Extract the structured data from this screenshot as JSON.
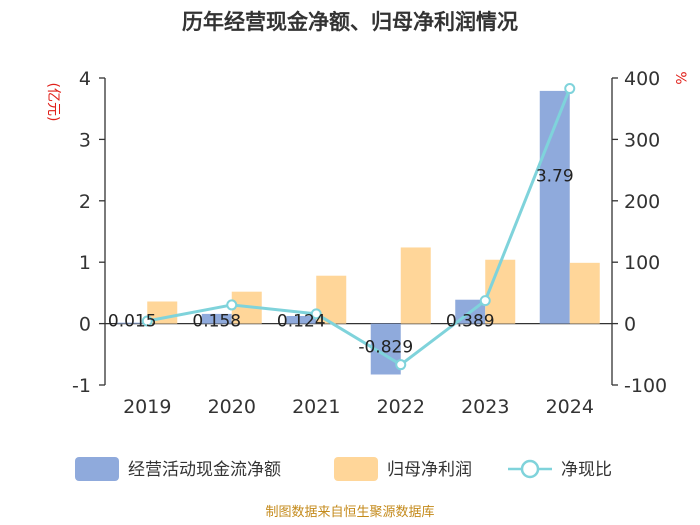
{
  "chart_data": {
    "type": "bar",
    "title": "历年经营现金净额、归母净利润情况",
    "categories": [
      "2019",
      "2020",
      "2021",
      "2022",
      "2023",
      "2024"
    ],
    "series": [
      {
        "name": "经营活动现金流净额",
        "type": "bar",
        "axis": "left",
        "color": "#8faadc",
        "values": [
          0.015,
          0.158,
          0.124,
          -0.829,
          0.389,
          3.79
        ],
        "labels": [
          "0.015",
          "0.158",
          "0.124",
          "-0.829",
          "0.389",
          "3.79"
        ]
      },
      {
        "name": "归母净利润",
        "type": "bar",
        "axis": "left",
        "color": "#ffd699",
        "values": [
          0.36,
          0.52,
          0.78,
          1.24,
          1.04,
          0.99
        ]
      },
      {
        "name": "净现比",
        "type": "line",
        "axis": "right",
        "color": "#7fd3db",
        "values": [
          4.2,
          30.4,
          15.9,
          -66.9,
          37.4,
          382.8
        ]
      }
    ],
    "left_axis": {
      "unit": "(亿元)",
      "ylim": [
        -1,
        4
      ],
      "ticks": [
        "4",
        "3",
        "2",
        "1",
        "0",
        "-1"
      ]
    },
    "right_axis": {
      "unit": "%",
      "ylim": [
        -100,
        400
      ],
      "ticks": [
        "400",
        "300",
        "200",
        "100",
        "0",
        "-100"
      ]
    },
    "grid": false,
    "legend_position": "bottom"
  },
  "source": "制图数据来自恒生聚源数据库"
}
